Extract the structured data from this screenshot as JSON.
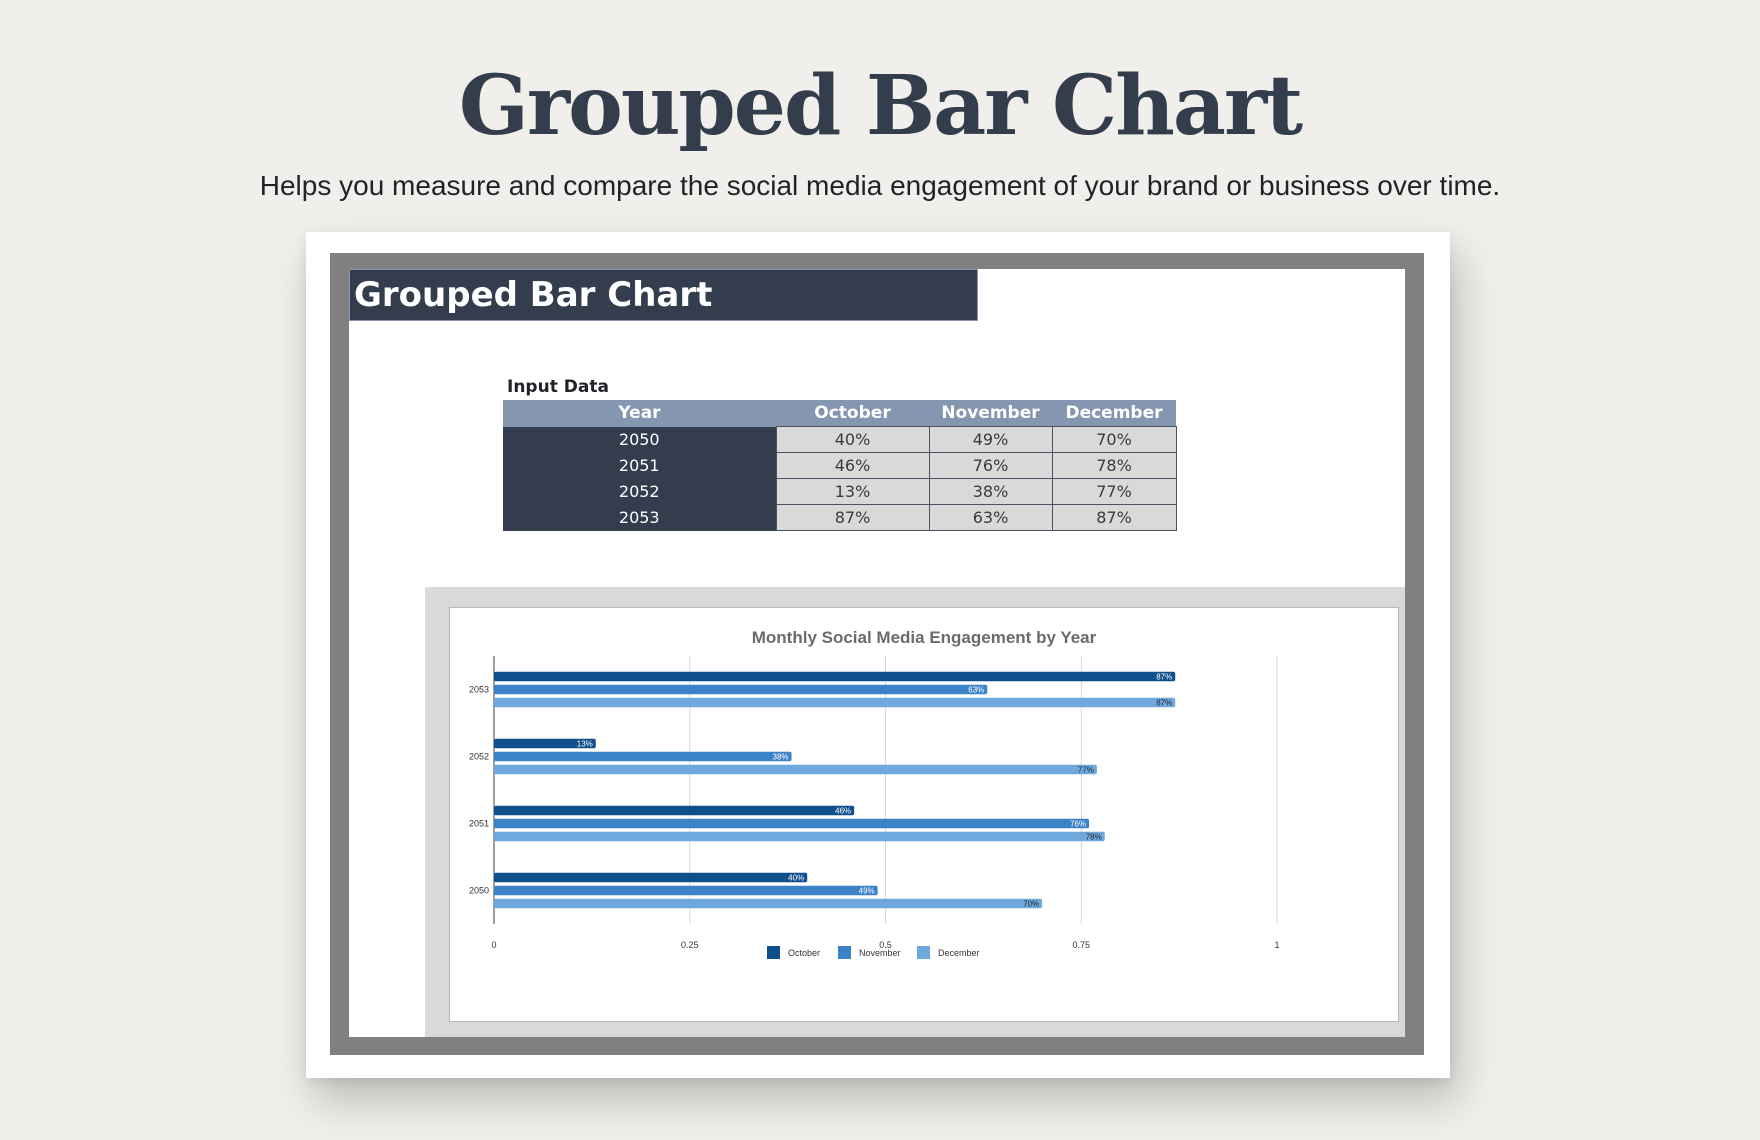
{
  "header": {
    "title": "Grouped Bar Chart",
    "subtitle": "Helps you measure and compare the social media engagement of your brand or business over time."
  },
  "sheet": {
    "title": "Grouped Bar Chart",
    "input_label": "Input Data",
    "table": {
      "columns": [
        "Year",
        "October",
        "November",
        "December"
      ],
      "rows": [
        [
          "2050",
          "40%",
          "49%",
          "70%"
        ],
        [
          "2051",
          "46%",
          "76%",
          "78%"
        ],
        [
          "2052",
          "13%",
          "38%",
          "77%"
        ],
        [
          "2053",
          "87%",
          "63%",
          "87%"
        ]
      ]
    }
  },
  "colors": {
    "october": "#0f4f8c",
    "november": "#3c82c6",
    "december": "#6fa8dc",
    "header_dark": "#333d4d",
    "header_light": "#8496b0"
  },
  "chart_data": {
    "type": "bar",
    "orientation": "horizontal",
    "title": "Monthly Social Media Engagement by Year",
    "categories": [
      "2050",
      "2051",
      "2052",
      "2053"
    ],
    "series": [
      {
        "name": "October",
        "values": [
          0.4,
          0.46,
          0.13,
          0.87
        ],
        "labels": [
          "40%",
          "46%",
          "13%",
          "87%"
        ]
      },
      {
        "name": "November",
        "values": [
          0.49,
          0.76,
          0.38,
          0.63
        ],
        "labels": [
          "49%",
          "76%",
          "38%",
          "63%"
        ]
      },
      {
        "name": "December",
        "values": [
          0.7,
          0.78,
          0.77,
          0.87
        ],
        "labels": [
          "70%",
          "78%",
          "77%",
          "87%"
        ]
      }
    ],
    "xlim": [
      0,
      1
    ],
    "xticks": [
      "0",
      "0.25",
      "0.5",
      "0.75",
      "1"
    ],
    "grid": true,
    "legend": "bottom"
  }
}
